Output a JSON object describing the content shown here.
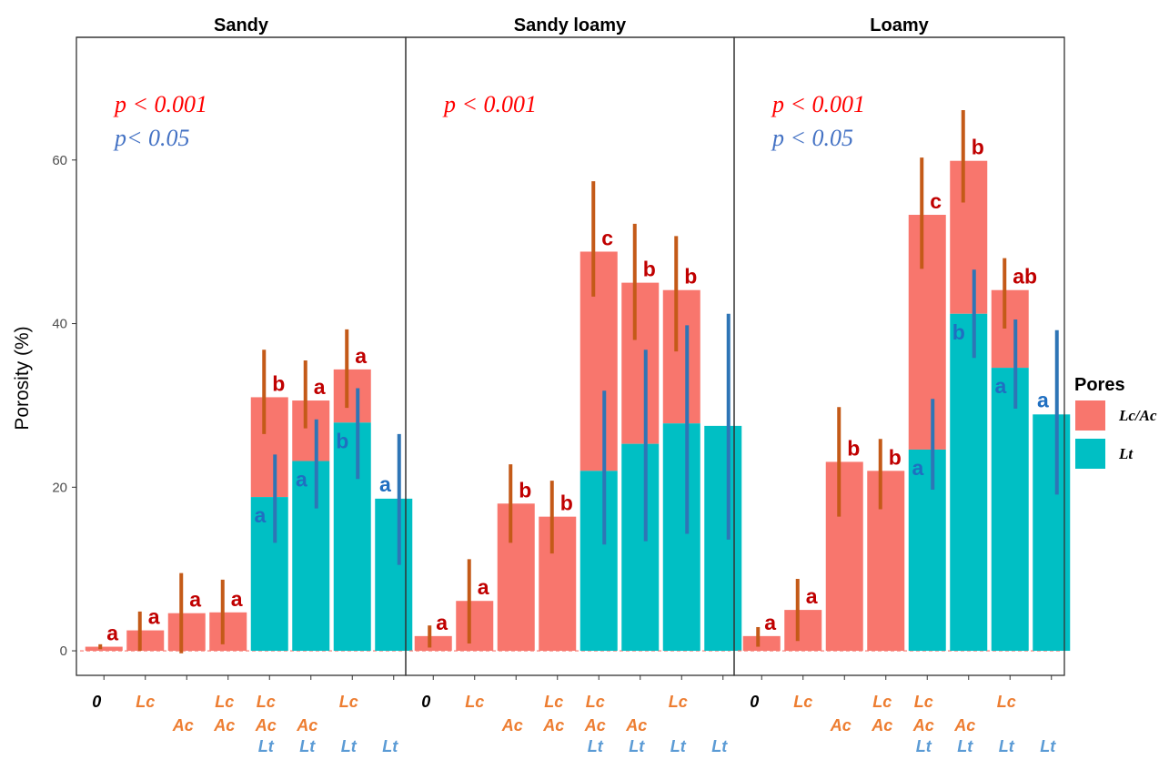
{
  "chart_data": {
    "type": "bar",
    "ylabel": "Porosity (%)",
    "xlabel": "",
    "title": "",
    "ylim": [
      -3,
      75
    ],
    "yticks": [
      0,
      20,
      40,
      60
    ],
    "grid": false,
    "legend": {
      "title": "Pores",
      "placement": "right",
      "entries": [
        {
          "name": "Lc/Ac",
          "color": "#F8766D"
        },
        {
          "name": "Lt",
          "color": "#00BFC4"
        }
      ]
    },
    "colors": {
      "lcac_bar": "#F8766D",
      "lt_bar": "#00BFC4",
      "lcac_error": "#C45A18",
      "lt_error": "#2E75B6",
      "lcac_sig": "#C00000",
      "lt_sig": "#1F6FC1",
      "p_red": "#FF0000",
      "p_blue": "#4472C4",
      "cat_orange": "#ED7D31",
      "cat_blue": "#5B9BD5"
    },
    "categories": [
      {
        "lines": [
          {
            "text": "0",
            "color": "black"
          }
        ]
      },
      {
        "lines": [
          {
            "text": "Lc",
            "color": "orange"
          }
        ]
      },
      {
        "lines": [
          {
            "text": "",
            "color": "orange"
          },
          {
            "text": "Ac",
            "color": "orange"
          }
        ]
      },
      {
        "lines": [
          {
            "text": "Lc",
            "color": "orange"
          },
          {
            "text": "Ac",
            "color": "orange"
          }
        ]
      },
      {
        "lines": [
          {
            "text": "Lc",
            "color": "orange"
          },
          {
            "text": "Ac",
            "color": "orange"
          },
          {
            "text": "Lt",
            "color": "blue"
          }
        ]
      },
      {
        "lines": [
          {
            "text": "",
            "color": "orange"
          },
          {
            "text": "Ac",
            "color": "orange"
          },
          {
            "text": "Lt",
            "color": "blue"
          }
        ]
      },
      {
        "lines": [
          {
            "text": "Lc",
            "color": "orange"
          },
          {
            "text": "",
            "color": "orange"
          },
          {
            "text": "Lt",
            "color": "blue"
          }
        ]
      },
      {
        "lines": [
          {
            "text": "",
            "color": "orange"
          },
          {
            "text": "",
            "color": "orange"
          },
          {
            "text": "Lt",
            "color": "blue"
          }
        ]
      }
    ],
    "panels": [
      {
        "name": "Sandy",
        "pvalues": [
          {
            "text": "p < 0.001",
            "color": "red"
          },
          {
            "text": "p< 0.05",
            "color": "blue"
          }
        ],
        "lcac_total": [
          0.5,
          2.5,
          4.6,
          4.7,
          31,
          30.6,
          34.4,
          null
        ],
        "lcac_err": [
          [
            0.2,
            0.8
          ],
          [
            0,
            4.8
          ],
          [
            -0.3,
            9.5
          ],
          [
            0.8,
            8.7
          ],
          [
            26.5,
            36.8
          ],
          [
            27.2,
            35.5
          ],
          [
            29.7,
            39.3
          ],
          null
        ],
        "lcac_sig": [
          "a",
          "a",
          "a",
          "a",
          "b",
          "a",
          "a",
          ""
        ],
        "lt": [
          null,
          null,
          null,
          null,
          18.8,
          23.2,
          27.9,
          18.6
        ],
        "lt_err": [
          null,
          null,
          null,
          null,
          [
            13.2,
            24
          ],
          [
            17.4,
            28.3
          ],
          [
            21,
            32.1
          ],
          [
            10.5,
            26.5
          ]
        ],
        "lt_sig": [
          "",
          "",
          "",
          "",
          "a",
          "a",
          "b",
          "a"
        ]
      },
      {
        "name": "Sandy loamy",
        "pvalues": [
          {
            "text": "p < 0.001",
            "color": "red"
          }
        ],
        "lcac_total": [
          1.8,
          6.1,
          18,
          16.4,
          48.8,
          45,
          44.1,
          null
        ],
        "lcac_err": [
          [
            0.4,
            3.1
          ],
          [
            0.9,
            11.2
          ],
          [
            13.2,
            22.8
          ],
          [
            11.9,
            20.8
          ],
          [
            43.3,
            57.4
          ],
          [
            38,
            52.2
          ],
          [
            36.6,
            50.7
          ],
          null
        ],
        "lcac_sig": [
          "a",
          "a",
          "b",
          "b",
          "c",
          "b",
          "b",
          ""
        ],
        "lt": [
          null,
          null,
          null,
          null,
          22,
          25.3,
          27.8,
          27.5
        ],
        "lt_err": [
          null,
          null,
          null,
          null,
          [
            13,
            31.8
          ],
          [
            13.4,
            36.8
          ],
          [
            14.3,
            39.8
          ],
          [
            13.6,
            41.2
          ]
        ],
        "lt_sig": [
          "",
          "",
          "",
          "",
          "",
          "",
          "",
          ""
        ]
      },
      {
        "name": "Loamy",
        "pvalues": [
          {
            "text": "p < 0.001",
            "color": "red"
          },
          {
            "text": "p < 0.05",
            "color": "blue"
          }
        ],
        "lcac_total": [
          1.8,
          5,
          23.1,
          22,
          53.3,
          59.9,
          44.1,
          null
        ],
        "lcac_err": [
          [
            0.5,
            2.9
          ],
          [
            1.2,
            8.8
          ],
          [
            16.4,
            29.8
          ],
          [
            17.3,
            25.9
          ],
          [
            46.7,
            60.3
          ],
          [
            54.8,
            66.1
          ],
          [
            39.4,
            48
          ],
          null
        ],
        "lcac_sig": [
          "a",
          "a",
          "b",
          "b",
          "c",
          "b",
          "ab",
          ""
        ],
        "lt": [
          null,
          null,
          null,
          null,
          24.6,
          41.2,
          34.6,
          28.9
        ],
        "lt_err": [
          null,
          null,
          null,
          null,
          [
            19.7,
            30.8
          ],
          [
            35.8,
            46.6
          ],
          [
            29.6,
            40.5
          ],
          [
            19.1,
            39.2
          ]
        ],
        "lt_sig": [
          "",
          "",
          "",
          "",
          "a",
          "b",
          "a",
          "a"
        ]
      }
    ]
  }
}
